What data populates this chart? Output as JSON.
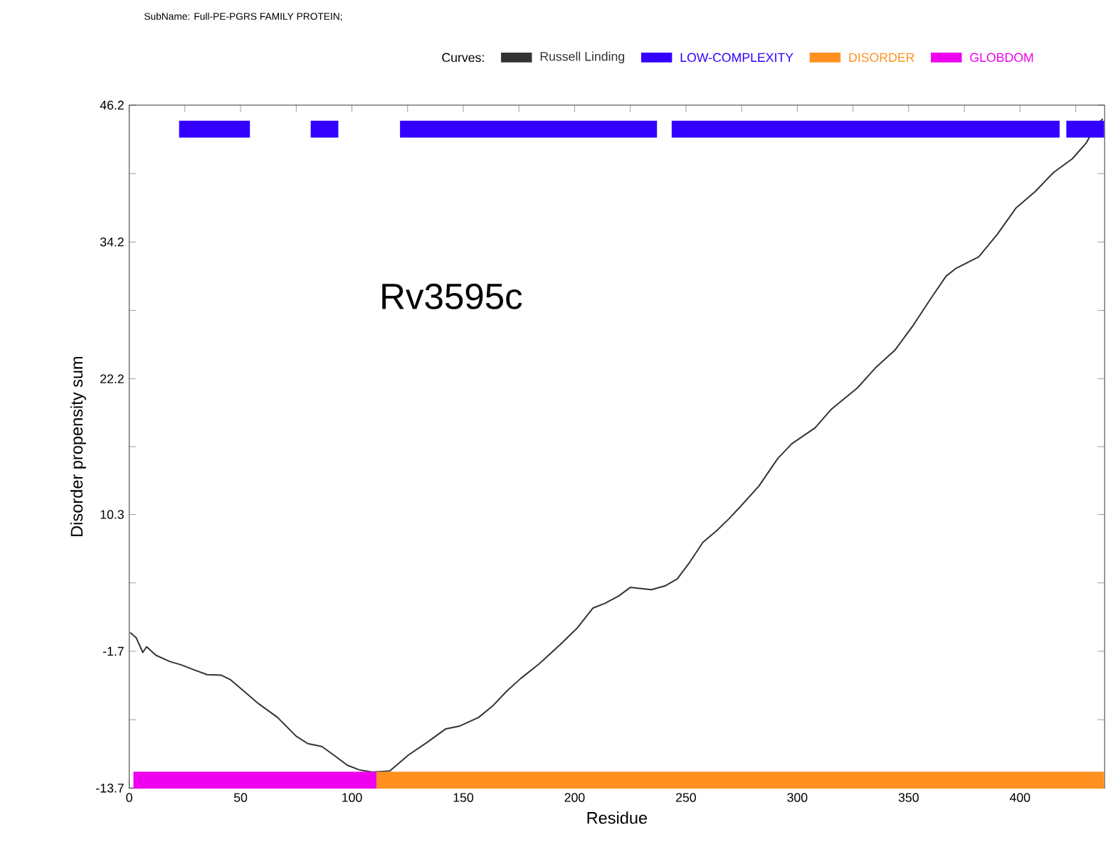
{
  "chart_data": {
    "type": "line",
    "title": "SubName: Full-PE-PGRS FAMILY PROTEIN;",
    "xlabel": "Residue",
    "ylabel": "Disorder propensity sum",
    "legend_title": "Curves:",
    "legend": "top",
    "annotations": [
      "Rv3595c"
    ],
    "xlim": [
      0,
      438
    ],
    "ylim": [
      -13.7,
      46.2
    ],
    "xticks": [
      0,
      {
        "value": 25,
        "label": null
      },
      50,
      {
        "value": 75,
        "label": null
      },
      100,
      {
        "value": 125,
        "label": null
      },
      150,
      {
        "value": 175,
        "label": null
      },
      200,
      {
        "value": 225,
        "label": null
      },
      250,
      {
        "value": 275,
        "label": null
      },
      300,
      {
        "value": 325,
        "label": null
      },
      350,
      {
        "value": 375,
        "label": null
      },
      400,
      {
        "value": 425,
        "label": null
      }
    ],
    "yticks": [
      -13.7,
      {
        "value": -7.7,
        "label": null
      },
      -1.7,
      {
        "value": 4.3,
        "label": null
      },
      10.3,
      {
        "value": 16.25,
        "label": null
      },
      22.2,
      {
        "value": 28.2,
        "label": null
      },
      34.2,
      {
        "value": 40.2,
        "label": null
      },
      46.2
    ],
    "series": [
      {
        "name": "Russell Linding",
        "color": "#333333",
        "x": [
          0.4,
          3.1,
          6.1,
          7.8,
          12,
          18.3,
          23.5,
          28.8,
          35,
          41.4,
          45.5,
          51.8,
          58.1,
          66.6,
          75,
          80.2,
          86.5,
          91.8,
          98,
          103.3,
          109.6,
          117,
          125.4,
          133.7,
          142.2,
          148.5,
          156.9,
          163.2,
          169.5,
          175.7,
          184.1,
          193.6,
          201,
          208.3,
          213.5,
          219.8,
          225,
          234.5,
          240.8,
          246.1,
          251.3,
          257.6,
          263.9,
          269.2,
          274.5,
          282.8,
          291.2,
          297.5,
          308,
          315.4,
          327,
          335.3,
          343.8,
          352.1,
          360.5,
          366.8,
          371,
          381.5,
          389.9,
          398.3,
          406.7,
          415.1,
          423.5,
          429.8,
          434,
          437.2
        ],
        "values": [
          -0.05,
          -0.5,
          -1.8,
          -1.3,
          -2.05,
          -2.6,
          -2.9,
          -3.3,
          -3.75,
          -3.8,
          -4.2,
          -5.25,
          -6.3,
          -7.5,
          -9.15,
          -9.8,
          -10.05,
          -10.8,
          -11.7,
          -12.1,
          -12.3,
          -12.2,
          -10.8,
          -9.7,
          -8.5,
          -8.25,
          -7.5,
          -6.5,
          -5.2,
          -4.1,
          -2.8,
          -1.1,
          0.3,
          2.1,
          2.5,
          3.15,
          3.9,
          3.7,
          4.05,
          4.65,
          6.0,
          7.85,
          8.9,
          9.9,
          11.0,
          12.8,
          15.2,
          16.5,
          17.9,
          19.55,
          21.4,
          23.2,
          24.7,
          26.9,
          29.4,
          31.2,
          31.85,
          32.9,
          34.9,
          37.2,
          38.6,
          40.3,
          41.5,
          42.9,
          44.4,
          45.0
        ]
      },
      {
        "name": "LOW-COMPLEXITY",
        "color": "#3300ff",
        "x": [
          22.4,
          36.5,
          36.9,
          54.2,
          68,
          81.5,
          93.9,
          108,
          121.6,
          237,
          240,
          243.6,
          417.8,
          419,
          420.8,
          437.8
        ],
        "values": [
          44.1,
          44.1,
          44.1,
          44.1,
          null,
          44.1,
          44.1,
          null,
          44.1,
          44.1,
          null,
          44.1,
          44.1,
          null,
          44.1,
          44.1
        ]
      },
      {
        "name": "DISORDER",
        "color": "#ff9020",
        "x": [
          111,
          437.8
        ],
        "values": [
          -13.0,
          -13.0
        ]
      },
      {
        "name": "GLOBDOM",
        "color": "#ee00ee",
        "x": [
          1.9,
          111
        ],
        "values": [
          -13.0,
          -13.0
        ]
      }
    ]
  }
}
